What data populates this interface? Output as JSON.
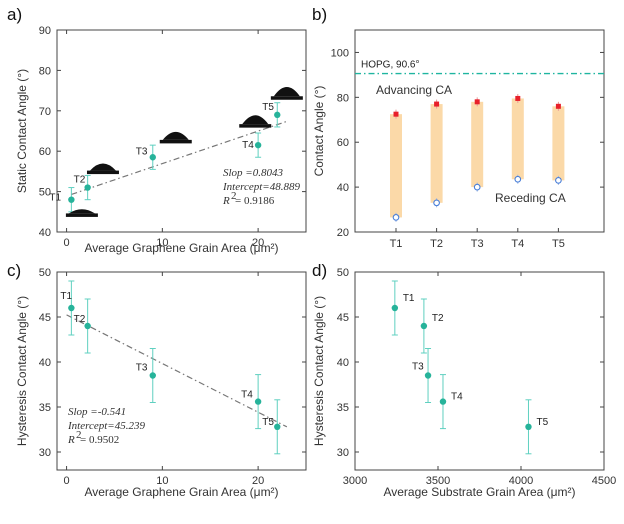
{
  "colors": {
    "marker": "#26b39a",
    "errorbar": "#5fd0c0",
    "fitline": "#777777",
    "advancing": "#e8202a",
    "receding": "#4a7fd8",
    "range_bar": "#fbd9a8",
    "hopg": "#1fb5a0",
    "droplet": "#111111"
  },
  "chart_data": [
    {
      "panel": "a)",
      "type": "scatter",
      "xlabel": "Average Graphene Grain Area (μm²)",
      "ylabel": "Static Contact Angle (°)",
      "xlim": [
        -1,
        25
      ],
      "ylim": [
        40,
        90
      ],
      "xticks": [
        0,
        10,
        20
      ],
      "yticks": [
        40,
        50,
        60,
        70,
        80,
        90
      ],
      "points": [
        {
          "label": "T1",
          "x": 0.5,
          "y": 48,
          "err": 3
        },
        {
          "label": "T2",
          "x": 2.2,
          "y": 51,
          "err": 3
        },
        {
          "label": "T3",
          "x": 9.0,
          "y": 58.5,
          "err": 3
        },
        {
          "label": "T4",
          "x": 20.0,
          "y": 61.5,
          "err": 3
        },
        {
          "label": "T5",
          "x": 22.0,
          "y": 69,
          "err": 3
        }
      ],
      "fit": {
        "slope": 0.8043,
        "intercept": 48.889,
        "x_range": [
          0.5,
          23
        ]
      },
      "annotations": [
        "Slop =0.8043",
        "Intercept=48.889",
        "R",
        "2",
        " = 0.9186"
      ],
      "droplets": [
        {
          "x": 1.6,
          "y": 44.6,
          "h": 1.0
        },
        {
          "x": 3.8,
          "y": 55.2,
          "h": 1.7
        },
        {
          "x": 11.4,
          "y": 62.8,
          "h": 1.9
        },
        {
          "x": 19.7,
          "y": 66.7,
          "h": 2.1
        },
        {
          "x": 23.0,
          "y": 73.6,
          "h": 2.2
        }
      ]
    },
    {
      "panel": "b)",
      "type": "bar",
      "ylabel": "Contact Angle (°)",
      "categories": [
        "T1",
        "T2",
        "T3",
        "T4",
        "T5"
      ],
      "ylim": [
        20,
        110
      ],
      "yticks": [
        20,
        40,
        60,
        80,
        100
      ],
      "series": [
        {
          "name": "Advancing CA",
          "values": [
            72.5,
            77,
            78,
            79.5,
            76
          ],
          "err": 2
        },
        {
          "name": "Receding CA",
          "values": [
            26.5,
            33,
            40,
            43.5,
            43
          ],
          "err": 2
        }
      ],
      "reference": {
        "name": "HOPG, 90.6°",
        "value": 90.6
      }
    },
    {
      "panel": "c)",
      "type": "scatter",
      "xlabel": "Average Graphene Grain Area (μm²)",
      "ylabel": "Hysteresis Contact Angle (°)",
      "xlim": [
        -1,
        25
      ],
      "ylim": [
        28,
        50
      ],
      "xticks": [
        0,
        10,
        20
      ],
      "yticks": [
        30,
        35,
        40,
        45,
        50
      ],
      "points": [
        {
          "label": "T1",
          "x": 0.5,
          "y": 46,
          "err": 3
        },
        {
          "label": "T2",
          "x": 2.2,
          "y": 44,
          "err": 3
        },
        {
          "label": "T3",
          "x": 9.0,
          "y": 38.5,
          "err": 3
        },
        {
          "label": "T4",
          "x": 20.0,
          "y": 35.6,
          "err": 3
        },
        {
          "label": "T5",
          "x": 22.0,
          "y": 32.8,
          "err": 3
        }
      ],
      "fit": {
        "slope": -0.541,
        "intercept": 45.239,
        "x_range": [
          0,
          23
        ]
      },
      "annotations": [
        "Slop =-0.541",
        "Intercept=45.239",
        "R",
        "2",
        " = 0.9502"
      ]
    },
    {
      "panel": "d)",
      "type": "scatter",
      "xlabel": "Average Substrate Grain Area (μm²)",
      "ylabel": "Hysteresis Contact Angle (°)",
      "xlim": [
        3000,
        4500
      ],
      "ylim": [
        28,
        50
      ],
      "xticks": [
        3000,
        3500,
        4000,
        4500
      ],
      "yticks": [
        30,
        35,
        40,
        45,
        50
      ],
      "points": [
        {
          "label": "T1",
          "x": 3240,
          "y": 46,
          "err": 3
        },
        {
          "label": "T2",
          "x": 3415,
          "y": 44,
          "err": 3
        },
        {
          "label": "T3",
          "x": 3440,
          "y": 38.5,
          "err": 3
        },
        {
          "label": "T4",
          "x": 3530,
          "y": 35.6,
          "err": 3
        },
        {
          "label": "T5",
          "x": 4045,
          "y": 32.8,
          "err": 3
        }
      ]
    }
  ]
}
